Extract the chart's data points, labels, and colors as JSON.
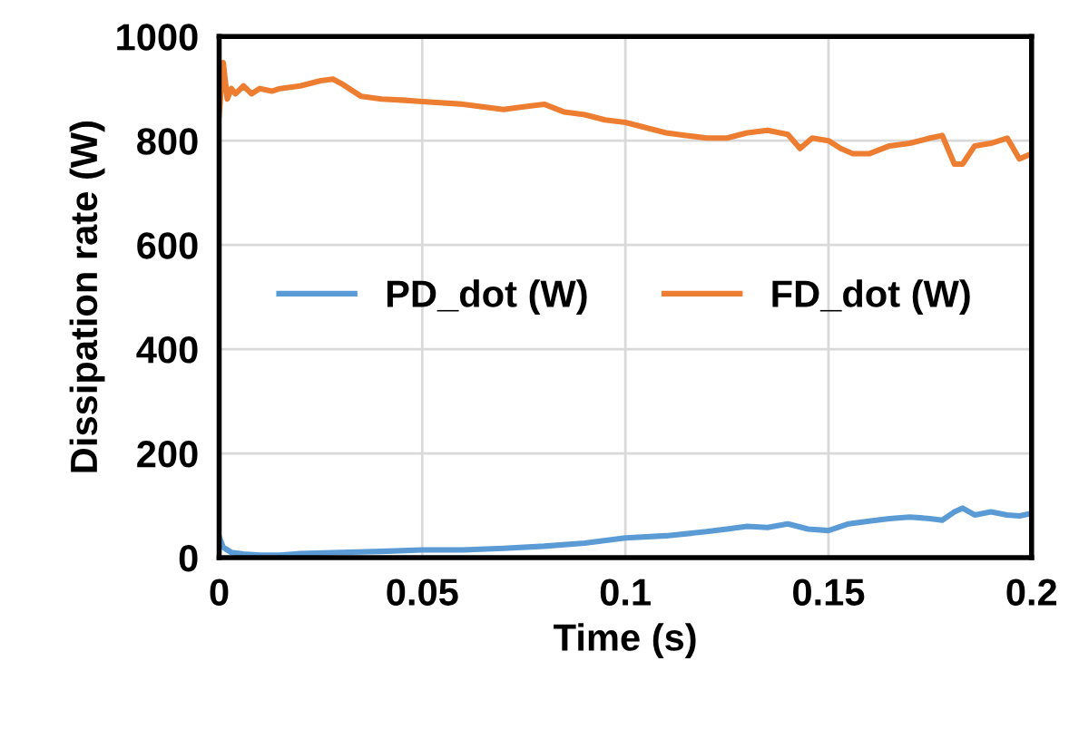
{
  "chart_data": {
    "type": "line",
    "xlabel": "Time (s)",
    "ylabel": "Dissipation rate (W)",
    "xlim": [
      0,
      0.2
    ],
    "ylim": [
      0,
      1000
    ],
    "xticks": [
      0,
      0.05,
      0.1,
      0.15,
      0.2
    ],
    "yticks": [
      0,
      200,
      400,
      600,
      800,
      1000
    ],
    "grid": true,
    "legend": "center",
    "marker": "none",
    "line_style": "solid",
    "series": [
      {
        "name": "PD_dot (W)",
        "color": "#5b9bd5",
        "x": [
          0,
          0.001,
          0.003,
          0.006,
          0.01,
          0.015,
          0.02,
          0.03,
          0.04,
          0.05,
          0.06,
          0.07,
          0.08,
          0.09,
          0.1,
          0.11,
          0.12,
          0.125,
          0.13,
          0.135,
          0.14,
          0.145,
          0.15,
          0.155,
          0.16,
          0.165,
          0.17,
          0.175,
          0.178,
          0.181,
          0.183,
          0.186,
          0.19,
          0.194,
          0.197,
          0.2
        ],
        "values": [
          40,
          20,
          10,
          7,
          5,
          5,
          8,
          10,
          12,
          15,
          15,
          18,
          22,
          28,
          38,
          42,
          50,
          55,
          60,
          58,
          65,
          55,
          52,
          65,
          70,
          75,
          78,
          75,
          72,
          88,
          95,
          82,
          88,
          82,
          80,
          85
        ]
      },
      {
        "name": "FD_dot (W)",
        "color": "#ed7d31",
        "x": [
          0,
          0.001,
          0.002,
          0.003,
          0.004,
          0.006,
          0.008,
          0.01,
          0.013,
          0.015,
          0.02,
          0.025,
          0.028,
          0.03,
          0.035,
          0.04,
          0.045,
          0.05,
          0.06,
          0.07,
          0.075,
          0.08,
          0.085,
          0.09,
          0.095,
          0.1,
          0.105,
          0.11,
          0.115,
          0.12,
          0.125,
          0.13,
          0.135,
          0.14,
          0.143,
          0.146,
          0.15,
          0.153,
          0.156,
          0.16,
          0.165,
          0.17,
          0.175,
          0.178,
          0.181,
          0.183,
          0.186,
          0.19,
          0.194,
          0.197,
          0.2
        ],
        "values": [
          850,
          950,
          880,
          900,
          890,
          905,
          890,
          900,
          895,
          900,
          905,
          915,
          918,
          910,
          885,
          880,
          878,
          875,
          870,
          860,
          865,
          870,
          855,
          850,
          840,
          835,
          825,
          815,
          810,
          805,
          805,
          815,
          820,
          812,
          785,
          805,
          800,
          785,
          775,
          775,
          790,
          795,
          805,
          810,
          755,
          755,
          790,
          795,
          805,
          765,
          775
        ]
      }
    ]
  }
}
